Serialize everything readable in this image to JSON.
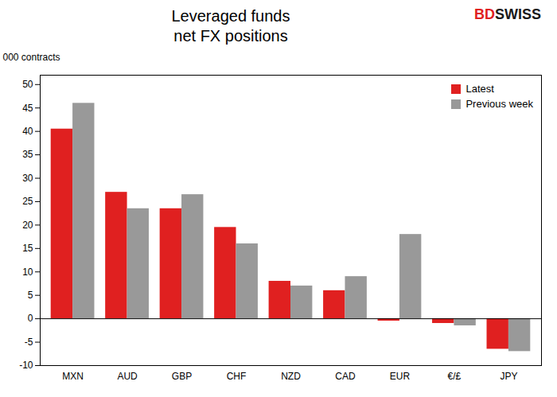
{
  "chart_data": {
    "type": "bar",
    "title": "Leveraged funds\nnet FX positions",
    "ylabel": "000 contracts",
    "categories": [
      "MXN",
      "AUD",
      "GBP",
      "CHF",
      "NZD",
      "CAD",
      "EUR",
      "€/£",
      "JPY"
    ],
    "series": [
      {
        "name": "Latest",
        "color": "#e02020",
        "values": [
          40.5,
          27.0,
          23.5,
          19.5,
          8.0,
          6.0,
          -0.5,
          -1.0,
          -6.5
        ]
      },
      {
        "name": "Previous week",
        "color": "#999999",
        "values": [
          46.0,
          23.5,
          26.5,
          16.0,
          7.0,
          9.0,
          18.0,
          -1.5,
          -7.0
        ]
      }
    ],
    "ylim": [
      -10,
      52
    ],
    "yticks": [
      -10,
      -5,
      0,
      5,
      10,
      15,
      20,
      25,
      30,
      35,
      40,
      45,
      50
    ],
    "grid": false,
    "legend": "upper right",
    "annotations": [
      {
        "text": "BD",
        "color": "#e02020"
      },
      {
        "text": "SWISS",
        "color": "#1a1a1a"
      }
    ]
  }
}
